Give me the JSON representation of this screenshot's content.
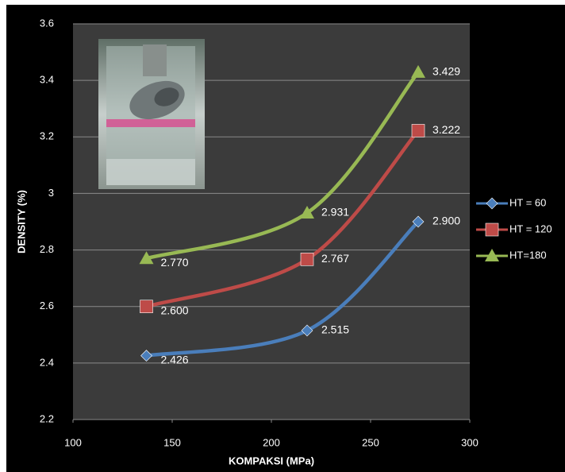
{
  "chart_data": {
    "type": "line",
    "x_label": "KOMPAKSI (MPa)",
    "y_label": "DENSITY (%)",
    "x": [
      137,
      218,
      274
    ],
    "xlim": [
      100,
      300
    ],
    "xticks": [
      100,
      150,
      200,
      250,
      300
    ],
    "ylim": [
      2.2,
      3.6
    ],
    "yticks": [
      2.2,
      2.4,
      2.6,
      2.8,
      3.0,
      3.2,
      3.4,
      3.6
    ],
    "grid": true,
    "smooth": true,
    "legend": "right",
    "series": [
      {
        "name": "HT = 60",
        "color": "#4a7ebb",
        "marker": "diamond",
        "values": [
          2.426,
          2.515,
          2.9
        ],
        "value_labels": [
          "2.426",
          "2.515",
          "2.900"
        ]
      },
      {
        "name": "HT = 120",
        "color": "#be4b48",
        "marker": "square",
        "values": [
          2.6,
          2.767,
          3.222
        ],
        "value_labels": [
          "2.600",
          "2.767",
          "3.222"
        ]
      },
      {
        "name": "HT=180",
        "color": "#98b954",
        "marker": "triangle",
        "values": [
          2.77,
          2.931,
          3.429
        ],
        "value_labels": [
          "2.770",
          "2.931",
          "3.429"
        ]
      }
    ]
  }
}
